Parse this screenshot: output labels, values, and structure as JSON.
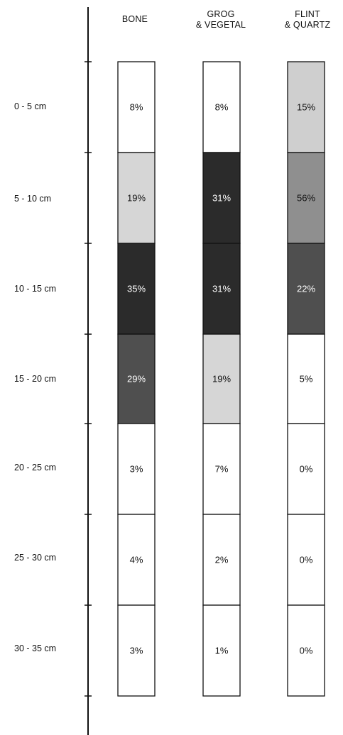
{
  "chart_data": {
    "type": "table",
    "columns": [
      {
        "key": "bone",
        "label": "BONE"
      },
      {
        "key": "grog_vegetal",
        "label": "GROG\n& VEGETAL"
      },
      {
        "key": "flint_quartz",
        "label": "FLINT\n& QUARTZ"
      }
    ],
    "rows": [
      "0 - 5 cm",
      "5 - 10 cm",
      "10 - 15 cm",
      "15 - 20 cm",
      "20 - 25 cm",
      "25 - 30 cm",
      "30 - 35 cm"
    ],
    "values": {
      "bone": [
        8,
        19,
        35,
        29,
        3,
        4,
        3
      ],
      "grog_vegetal": [
        8,
        31,
        31,
        19,
        7,
        2,
        1
      ],
      "flint_quartz": [
        15,
        56,
        22,
        5,
        0,
        0,
        0
      ]
    },
    "value_suffix": "%",
    "shading_thresholds": [
      {
        "min": 30,
        "color": "#2b2b2b",
        "text": "#ffffff"
      },
      {
        "min": 20,
        "color": "#4f4f4f",
        "text": "#ffffff"
      },
      {
        "min": 10,
        "color": "#d6d6d6",
        "text": "#111111"
      },
      {
        "min": 0,
        "color": "#ffffff",
        "text": "#111111"
      }
    ],
    "special_colors": {
      "flint_quartz:1": "#8f8f8f",
      "flint_quartz:0": "#cfcfcf"
    }
  }
}
